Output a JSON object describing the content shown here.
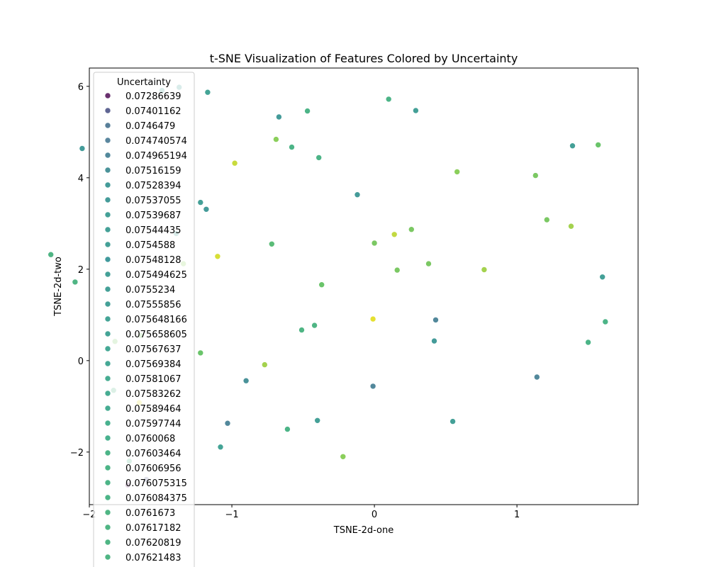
{
  "chart_data": {
    "type": "scatter",
    "title": "t-SNE Visualization of Features Colored by Uncertainty",
    "xlabel": "TSNE-2d-one",
    "ylabel": "TSNE-2d-two",
    "xlim": [
      -2.0,
      1.85
    ],
    "ylim": [
      -3.15,
      6.4
    ],
    "xticks": [
      -2,
      -1,
      0,
      1
    ],
    "yticks": [
      -2,
      0,
      2,
      4,
      6
    ],
    "xtick_labels": [
      "−2",
      "−1",
      "0",
      "1"
    ],
    "ytick_labels": [
      "−2",
      "0",
      "2",
      "4",
      "6"
    ],
    "grid": false,
    "colormap": "viridis",
    "legend": {
      "title": "Uncertainty",
      "placement": "upper-left",
      "entries": [
        {
          "label": "0.07286639",
          "color": "#69306e"
        },
        {
          "label": "0.07401162",
          "color": "#5f6593"
        },
        {
          "label": "0.0746479",
          "color": "#587f99"
        },
        {
          "label": "0.074740574",
          "color": "#5a869e"
        },
        {
          "label": "0.074965194",
          "color": "#52889b"
        },
        {
          "label": "0.07516159",
          "color": "#4a9299"
        },
        {
          "label": "0.07528394",
          "color": "#449b99"
        },
        {
          "label": "0.07537055",
          "color": "#449b99"
        },
        {
          "label": "0.07539687",
          "color": "#44a097"
        },
        {
          "label": "0.07544435",
          "color": "#44a097"
        },
        {
          "label": "0.0754588",
          "color": "#44a097"
        },
        {
          "label": "0.07548128",
          "color": "#40999c"
        },
        {
          "label": "0.075494625",
          "color": "#44a097"
        },
        {
          "label": "0.0755234",
          "color": "#44a097"
        },
        {
          "label": "0.07555856",
          "color": "#44a097"
        },
        {
          "label": "0.075648166",
          "color": "#44a496"
        },
        {
          "label": "0.075658605",
          "color": "#44a496"
        },
        {
          "label": "0.07567637",
          "color": "#45a895"
        },
        {
          "label": "0.07569384",
          "color": "#45a895"
        },
        {
          "label": "0.07581067",
          "color": "#46ac92"
        },
        {
          "label": "0.07583262",
          "color": "#46ac92"
        },
        {
          "label": "0.07589464",
          "color": "#46ac92"
        },
        {
          "label": "0.07597744",
          "color": "#48b18e"
        },
        {
          "label": "0.0760068",
          "color": "#48b18e"
        },
        {
          "label": "0.07603464",
          "color": "#4cb487"
        },
        {
          "label": "0.07606956",
          "color": "#4cb487"
        },
        {
          "label": "0.076075315",
          "color": "#4cb487"
        },
        {
          "label": "0.076084375",
          "color": "#4cb487"
        },
        {
          "label": "0.0761673",
          "color": "#4fb584"
        },
        {
          "label": "0.07617182",
          "color": "#4fb584"
        },
        {
          "label": "0.07620819",
          "color": "#4fb584"
        },
        {
          "label": "0.07621483",
          "color": "#4fb584"
        }
      ]
    },
    "points": [
      {
        "x": -1.49,
        "y": 5.91,
        "color": "#44a097"
      },
      {
        "x": -1.37,
        "y": 5.98,
        "color": "#44a097"
      },
      {
        "x": -1.17,
        "y": 5.87,
        "color": "#44a496"
      },
      {
        "x": 0.1,
        "y": 5.72,
        "color": "#4cb487"
      },
      {
        "x": -0.47,
        "y": 5.46,
        "color": "#4cb487"
      },
      {
        "x": 0.29,
        "y": 5.47,
        "color": "#44a097"
      },
      {
        "x": -0.67,
        "y": 5.33,
        "color": "#449b99"
      },
      {
        "x": -2.05,
        "y": 4.64,
        "color": "#449b99"
      },
      {
        "x": -0.69,
        "y": 4.84,
        "color": "#8bcf5b"
      },
      {
        "x": -0.58,
        "y": 4.67,
        "color": "#4cb487"
      },
      {
        "x": 1.39,
        "y": 4.7,
        "color": "#44a097"
      },
      {
        "x": 1.57,
        "y": 4.72,
        "color": "#6ac46a"
      },
      {
        "x": -0.98,
        "y": 4.32,
        "color": "#c8db3c"
      },
      {
        "x": -0.39,
        "y": 4.44,
        "color": "#4cb487"
      },
      {
        "x": 0.58,
        "y": 4.13,
        "color": "#8bcf5b"
      },
      {
        "x": 1.13,
        "y": 4.05,
        "color": "#7bc863"
      },
      {
        "x": -0.12,
        "y": 3.63,
        "color": "#449b99"
      },
      {
        "x": -1.22,
        "y": 3.46,
        "color": "#44a097"
      },
      {
        "x": -1.18,
        "y": 3.31,
        "color": "#449b99"
      },
      {
        "x": 1.21,
        "y": 3.08,
        "color": "#7bc863"
      },
      {
        "x": 1.38,
        "y": 2.94,
        "color": "#a4d24e"
      },
      {
        "x": 0.26,
        "y": 2.87,
        "color": "#7bc863"
      },
      {
        "x": -1.39,
        "y": 2.78,
        "color": "#44a097"
      },
      {
        "x": 0.14,
        "y": 2.76,
        "color": "#c2d941"
      },
      {
        "x": -0.72,
        "y": 2.55,
        "color": "#5bbc78"
      },
      {
        "x": 0.0,
        "y": 2.57,
        "color": "#7bc863"
      },
      {
        "x": -1.1,
        "y": 2.28,
        "color": "#d7df36"
      },
      {
        "x": -1.34,
        "y": 2.12,
        "color": "#8bcf5b"
      },
      {
        "x": 0.38,
        "y": 2.12,
        "color": "#7bc863"
      },
      {
        "x": 0.16,
        "y": 1.98,
        "color": "#7bc863"
      },
      {
        "x": 0.77,
        "y": 1.99,
        "color": "#a4d24e"
      },
      {
        "x": 1.6,
        "y": 1.83,
        "color": "#44a097"
      },
      {
        "x": -0.37,
        "y": 1.66,
        "color": "#6ac46a"
      },
      {
        "x": -0.01,
        "y": 0.91,
        "color": "#e5e030"
      },
      {
        "x": 0.43,
        "y": 0.89,
        "color": "#52889b"
      },
      {
        "x": 1.62,
        "y": 0.85,
        "color": "#4cb487"
      },
      {
        "x": -0.42,
        "y": 0.77,
        "color": "#4fb584"
      },
      {
        "x": -0.51,
        "y": 0.67,
        "color": "#4fb584"
      },
      {
        "x": -1.64,
        "y": 0.55,
        "color": "#7bc863"
      },
      {
        "x": 0.42,
        "y": 0.43,
        "color": "#449b99"
      },
      {
        "x": -1.82,
        "y": 0.42,
        "color": "#7bc863"
      },
      {
        "x": 1.5,
        "y": 0.4,
        "color": "#4cb487"
      },
      {
        "x": -1.22,
        "y": 0.17,
        "color": "#6ac46a"
      },
      {
        "x": -0.77,
        "y": -0.09,
        "color": "#a4d24e"
      },
      {
        "x": 1.14,
        "y": -0.36,
        "color": "#52889b"
      },
      {
        "x": -0.9,
        "y": -0.44,
        "color": "#4a9299"
      },
      {
        "x": -0.01,
        "y": -0.56,
        "color": "#52889b"
      },
      {
        "x": -1.83,
        "y": -0.65,
        "color": "#4fb584"
      },
      {
        "x": -1.65,
        "y": -0.92,
        "color": "#e5e030"
      },
      {
        "x": -0.4,
        "y": -1.31,
        "color": "#44a097"
      },
      {
        "x": 0.55,
        "y": -1.33,
        "color": "#44a097"
      },
      {
        "x": -1.03,
        "y": -1.37,
        "color": "#52889b"
      },
      {
        "x": -0.61,
        "y": -1.5,
        "color": "#4cb487"
      },
      {
        "x": -1.08,
        "y": -1.89,
        "color": "#44a496"
      },
      {
        "x": -0.22,
        "y": -2.1,
        "color": "#8bcf5b"
      },
      {
        "x": -1.72,
        "y": -2.2,
        "color": "#4cb487"
      },
      {
        "x": -1.6,
        "y": -2.6,
        "color": "#5f6593"
      },
      {
        "x": -1.73,
        "y": -2.72,
        "color": "#69306e"
      },
      {
        "x": -2.27,
        "y": 2.32,
        "color": "#4fb584"
      },
      {
        "x": -2.1,
        "y": 1.72,
        "color": "#4fb584"
      }
    ]
  }
}
